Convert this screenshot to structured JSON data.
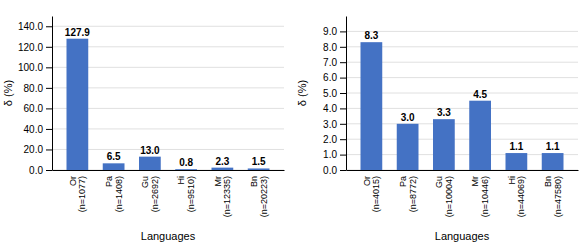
{
  "chart_data": [
    {
      "type": "bar",
      "categories": [
        "Or\n(n=1077)",
        "Pa\n(n=1408)",
        "Gu\n(n=2692)",
        "Hi\n(n=9510)",
        "Mr\n(n=12335)",
        "Bn\n(n=20223)"
      ],
      "values": [
        127.9,
        6.5,
        13.0,
        0.8,
        2.3,
        1.5
      ],
      "value_labels": [
        "127.9",
        "6.5",
        "13.0",
        "0.8",
        "2.3",
        "1.5"
      ],
      "data_labels": true,
      "color": "#4472C4",
      "ylabel": "δ (%)",
      "xlabel": "Languages",
      "ylim": [
        0,
        150
      ],
      "yticks": [
        {
          "value": 0,
          "label": "0.0"
        },
        {
          "value": 20,
          "label": "20.0"
        },
        {
          "value": 40,
          "label": "40.0"
        },
        {
          "value": 60,
          "label": "60.0"
        },
        {
          "value": 80,
          "label": "80.0"
        },
        {
          "value": 100,
          "label": "100.0"
        },
        {
          "value": 120,
          "label": "120.0"
        },
        {
          "value": 140,
          "label": "140.0"
        }
      ],
      "grid": true
    },
    {
      "type": "bar",
      "categories": [
        "Or\n(n=4015)",
        "Pa\n(n=8772)",
        "Gu\n(n=10004)",
        "Mr\n(n=10446)",
        "Hi\n(n=44069)",
        "Bn\n(n=47580)"
      ],
      "values": [
        8.3,
        3.0,
        3.3,
        4.5,
        1.1,
        1.1
      ],
      "value_labels": [
        "8.3",
        "3.0",
        "3.3",
        "4.5",
        "1.1",
        "1.1"
      ],
      "data_labels": true,
      "color": "#4472C4",
      "ylabel": "δ (%)",
      "xlabel": "Languages",
      "ylim": [
        0,
        10
      ],
      "yticks": [
        {
          "value": 0,
          "label": "0.0"
        },
        {
          "value": 1,
          "label": "1.0"
        },
        {
          "value": 2,
          "label": "2.0"
        },
        {
          "value": 3,
          "label": "3.0"
        },
        {
          "value": 4,
          "label": "4.0"
        },
        {
          "value": 5,
          "label": "5.0"
        },
        {
          "value": 6,
          "label": "6.0"
        },
        {
          "value": 7,
          "label": "7.0"
        },
        {
          "value": 8,
          "label": "8.0"
        },
        {
          "value": 9,
          "label": "9.0"
        }
      ],
      "grid": true
    }
  ]
}
